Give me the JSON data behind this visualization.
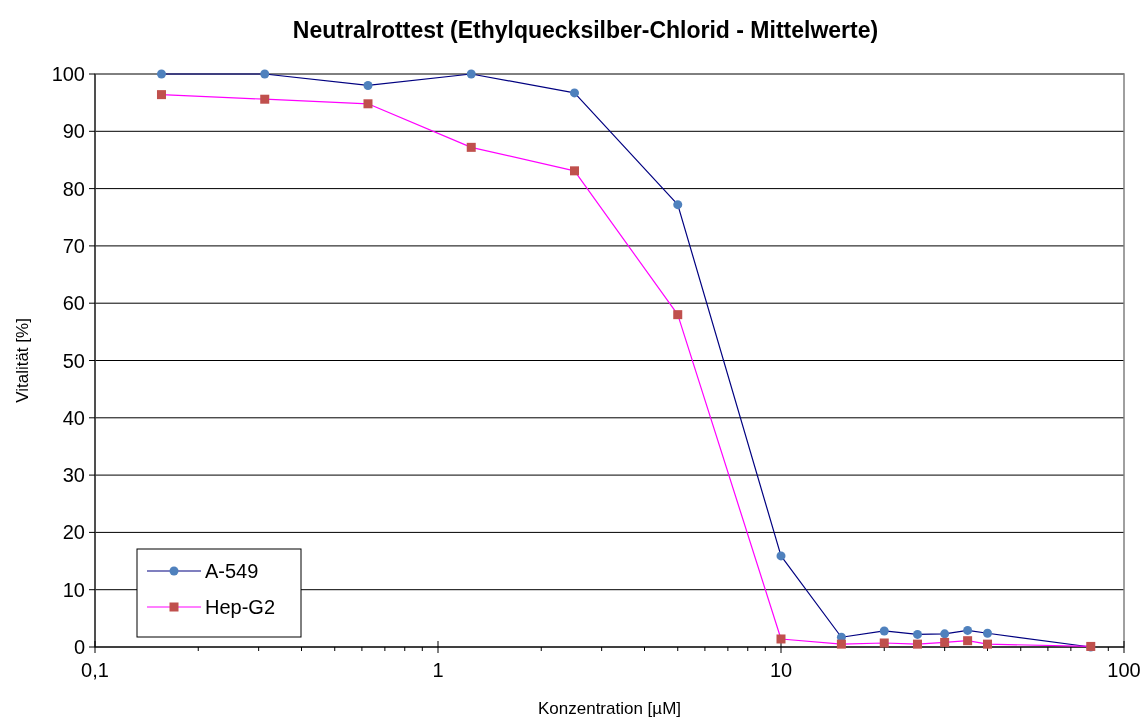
{
  "chart_data": {
    "type": "line",
    "title": "Neutralrottest (Ethylquecksilber-Chlorid - Mittelwerte)",
    "xlabel": "Konzentration [µM]",
    "ylabel": "Vitalität [%]",
    "log": "x",
    "x": [
      0.15625,
      0.3125,
      0.625,
      1.25,
      2.5,
      5,
      10,
      15,
      20,
      25,
      30,
      35,
      40,
      80
    ],
    "series": [
      {
        "name": "A-549",
        "color": "#000080",
        "colors": [
          "#4f81bd",
          "#4f81bd",
          "#4f81bd",
          "#4f81bd",
          "#4f81bd",
          "#4f81bd",
          "#4f81bd",
          "#4f81bd",
          "#4f81bd",
          "#4f81bd",
          "#4f81bd",
          "#4f81bd",
          "#4f81bd",
          "#4f81bd"
        ],
        "marker": "circle",
        "values": [
          100,
          100,
          98,
          100,
          96.7,
          77.2,
          15.9,
          1.7,
          2.8,
          2.2,
          2.3,
          2.9,
          2.4,
          0
        ]
      },
      {
        "name": "Hep-G2",
        "color": "#ff00ff",
        "colors": [
          "#c0504d",
          "#c0504d",
          "#c0504d",
          "#c0504d",
          "#c0504d",
          "#c0504d",
          "#c0504d",
          "#c0504d",
          "#c0504d",
          "#c0504d",
          "#c0504d",
          "#c0504d",
          "#c0504d",
          "#c0504d"
        ],
        "marker": "square",
        "values": [
          96.4,
          95.6,
          94.8,
          87.2,
          83.1,
          58,
          1.4,
          0.5,
          0.7,
          0.5,
          0.8,
          1.1,
          0.5,
          0.1
        ]
      }
    ],
    "xlim": [
      0.1,
      100
    ],
    "xticks": [
      {
        "value": 0.1,
        "label": "0,1"
      },
      {
        "value": 0.2,
        "label": null
      },
      {
        "value": 0.3,
        "label": null
      },
      {
        "value": 0.4,
        "label": null
      },
      {
        "value": 0.5,
        "label": null
      },
      {
        "value": 0.6,
        "label": null
      },
      {
        "value": 0.7,
        "label": null
      },
      {
        "value": 0.8,
        "label": null
      },
      {
        "value": 0.9,
        "label": null
      },
      1,
      {
        "value": 2,
        "label": null
      },
      {
        "value": 3,
        "label": null
      },
      {
        "value": 4,
        "label": null
      },
      {
        "value": 5,
        "label": null
      },
      {
        "value": 6,
        "label": null
      },
      {
        "value": 7,
        "label": null
      },
      {
        "value": 8,
        "label": null
      },
      {
        "value": 9,
        "label": null
      },
      10,
      {
        "value": 20,
        "label": null
      },
      {
        "value": 30,
        "label": null
      },
      {
        "value": 40,
        "label": null
      },
      {
        "value": 50,
        "label": null
      },
      {
        "value": 60,
        "label": null
      },
      {
        "value": 70,
        "label": null
      },
      {
        "value": 80,
        "label": null
      },
      {
        "value": 90,
        "label": null
      },
      100
    ],
    "ylim": [
      0,
      100
    ],
    "yticks": [
      0,
      10,
      20,
      30,
      40,
      50,
      60,
      70,
      80,
      90,
      100
    ],
    "grid": "y",
    "legend": "bottom left"
  }
}
